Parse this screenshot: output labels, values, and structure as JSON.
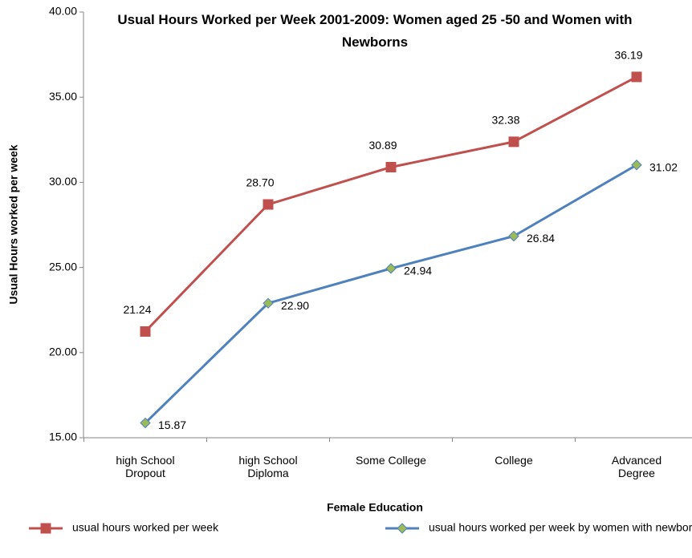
{
  "chart_data": {
    "type": "line",
    "title": "Usual Hours Worked per Week 2001-2009: Women aged 25 -50 and Women with Newborns",
    "x_label": "Female Education",
    "y_label": "Usual Hours worked per week",
    "categories": [
      "high School Dropout",
      "high School Diploma",
      "Some College",
      "College",
      "Advanced Degree"
    ],
    "series": [
      {
        "name": "usual hours worked per week",
        "color": "#c0504d",
        "marker": "square",
        "marker_color": "#c0504d",
        "values": [
          21.24,
          28.7,
          30.89,
          32.38,
          36.19
        ],
        "value_labels": [
          "21.24",
          "28.70",
          "30.89",
          "32.38",
          "36.19"
        ]
      },
      {
        "name": "usual hours worked per week by women with newborn",
        "color": "#4f81bd",
        "marker": "diamond",
        "marker_color": "#9bbb59",
        "values": [
          15.87,
          22.9,
          24.94,
          26.84,
          31.02
        ],
        "value_labels": [
          "15.87",
          "22.90",
          "24.94",
          "26.84",
          "31.02"
        ]
      }
    ],
    "ylim": [
      15,
      40
    ],
    "yticks": [
      {
        "value": 15,
        "label": "15.00"
      },
      {
        "value": 20,
        "label": "20.00"
      },
      {
        "value": 25,
        "label": "25.00"
      },
      {
        "value": 30,
        "label": "30.00"
      },
      {
        "value": 35,
        "label": "35.00"
      },
      {
        "value": 40,
        "label": "40.00"
      }
    ],
    "grid": false,
    "legend": "bottom"
  }
}
